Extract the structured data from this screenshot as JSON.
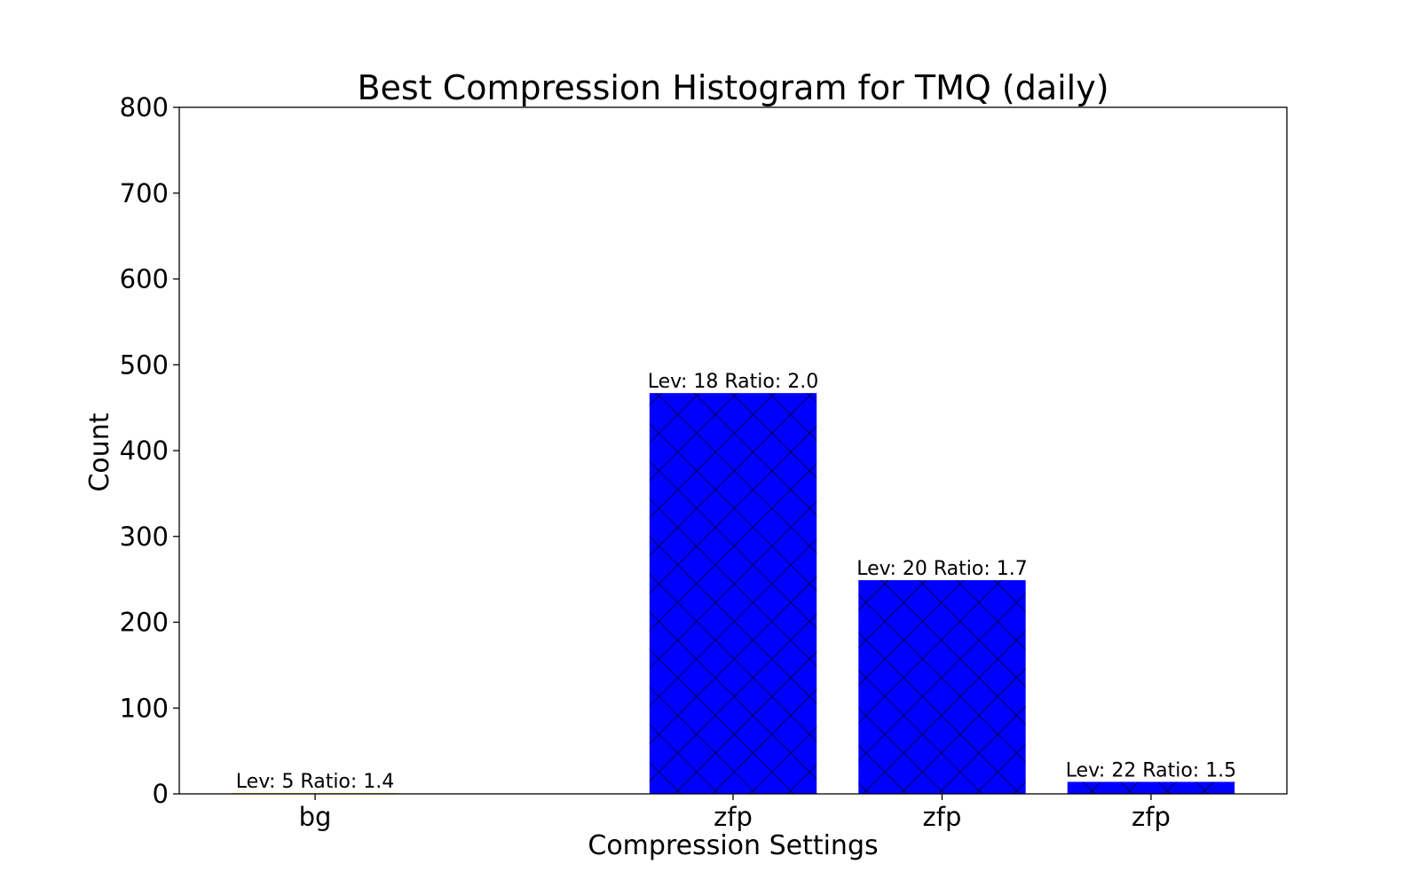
{
  "chart_data": {
    "type": "bar",
    "title": "Best Compression Histogram for TMQ (daily)",
    "xlabel": "Compression Settings",
    "ylabel": "Count",
    "ylim": [
      0,
      800
    ],
    "yticks": [
      0,
      100,
      200,
      300,
      400,
      500,
      600,
      700,
      800
    ],
    "categories": [
      "bg",
      "",
      "zfp",
      "zfp",
      "zfp"
    ],
    "values": [
      1,
      0,
      467,
      249,
      14
    ],
    "data_labels": [
      "Lev: 5 Ratio: 1.4",
      "",
      "Lev: 18 Ratio: 2.0",
      "Lev: 20 Ratio: 1.7",
      "Lev: 22 Ratio: 1.5"
    ],
    "colors": [
      "#ffbb00",
      null,
      "#0000ff",
      "#0000ff",
      "#0000ff"
    ],
    "hatch": "crosshatch",
    "grid": false,
    "legend": "none"
  }
}
